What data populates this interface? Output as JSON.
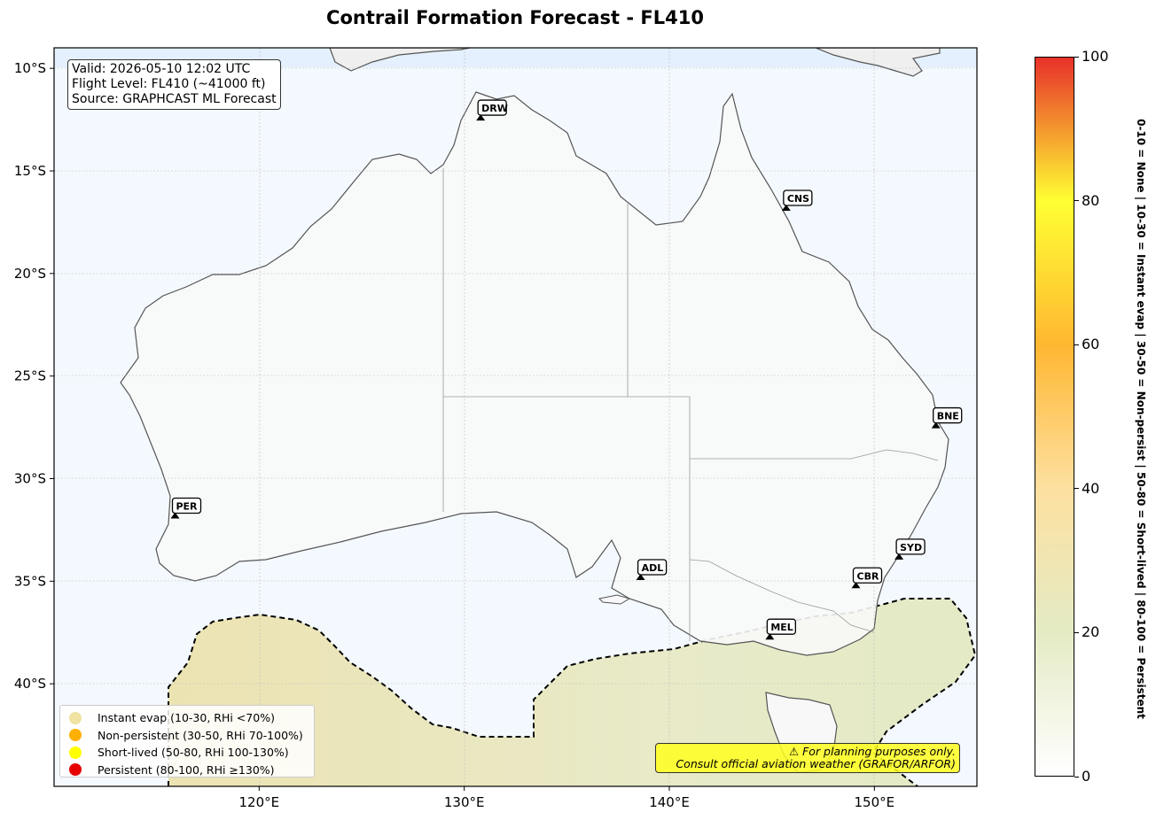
{
  "title": "Contrail Formation Forecast - FL410",
  "info_box": {
    "valid": "Valid: 2026-05-10 12:02 UTC",
    "flight_level": "Flight Level: FL410 (~41000 ft)",
    "source": "Source: GRAPHCAST ML Forecast"
  },
  "map": {
    "lon_range": [
      110,
      155
    ],
    "lat_range": [
      -45,
      -9
    ],
    "lon_ticks": [
      120,
      130,
      140,
      150
    ],
    "lat_ticks": [
      -10,
      -15,
      -20,
      -25,
      -30,
      -35,
      -40
    ],
    "lon_tick_labels": [
      "120°E",
      "130°E",
      "140°E",
      "150°E"
    ],
    "lat_tick_labels": [
      "10°S",
      "15°S",
      "20°S",
      "25°S",
      "30°S",
      "35°S",
      "40°S"
    ]
  },
  "cities": [
    {
      "code": "DRW",
      "lon": 130.8,
      "lat": -12.5
    },
    {
      "code": "CNS",
      "lon": 145.7,
      "lat": -16.9
    },
    {
      "code": "BNE",
      "lon": 153.0,
      "lat": -27.5
    },
    {
      "code": "PER",
      "lon": 115.9,
      "lat": -31.9
    },
    {
      "code": "ADL",
      "lon": 138.6,
      "lat": -34.9
    },
    {
      "code": "SYD",
      "lon": 151.2,
      "lat": -33.9
    },
    {
      "code": "CBR",
      "lon": 149.1,
      "lat": -35.3
    },
    {
      "code": "MEL",
      "lon": 144.9,
      "lat": -37.8
    }
  ],
  "legend": [
    {
      "label": "Instant evap (10-30, RHi <70%)",
      "color": "#f0e2a0"
    },
    {
      "label": "Non-persistent (30-50, RHi 70-100%)",
      "color": "#ffb000"
    },
    {
      "label": "Short-lived (50-80, RHi 100-130%)",
      "color": "#ffff00"
    },
    {
      "label": "Persistent (80-100, RHi ≥130%)",
      "color": "#e60000"
    }
  ],
  "disclaimer": {
    "line1": "⚠ For planning purposes only.",
    "line2": "Consult official aviation weather (GRAFOR/ARFOR)"
  },
  "colorbar": {
    "min": 0,
    "max": 100,
    "ticks": [
      0,
      20,
      40,
      60,
      80,
      100
    ],
    "label": "0-10 = None  |  10-30 = Instant evap  |  30-50 = Non-persist  |  50-80 = Short-lived  |  80-100 = Persistent",
    "colors": [
      "#ffffff",
      "#e4ebc4",
      "#fde0a0",
      "#ffb732",
      "#ffff33",
      "#e8302a"
    ]
  }
}
